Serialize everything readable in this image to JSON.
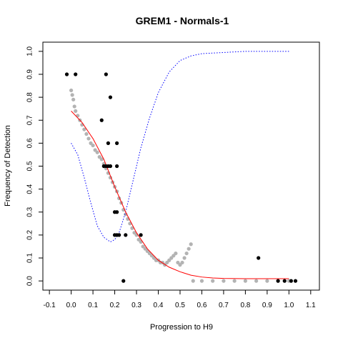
{
  "chart_data": {
    "type": "scatter",
    "title": "GREM1 - Normals-1",
    "xlabel": "Progression to H9",
    "ylabel": "Frequency of Detection",
    "xlim": [
      -0.13,
      1.14
    ],
    "ylim": [
      -0.04,
      1.04
    ],
    "x_ticks": [
      -0.1,
      0.0,
      0.1,
      0.2,
      0.3,
      0.4,
      0.5,
      0.6,
      0.7,
      0.8,
      0.9,
      1.0,
      1.1
    ],
    "x_tick_labels": [
      "-0.1",
      "0.0",
      "0.1",
      "0.2",
      "0.3",
      "0.4",
      "0.5",
      "0.6",
      "0.7",
      "0.8",
      "0.9",
      "1.0",
      "1.1"
    ],
    "y_ticks": [
      0.0,
      0.1,
      0.2,
      0.3,
      0.4,
      0.5,
      0.6,
      0.7,
      0.8,
      0.9,
      1.0
    ],
    "y_tick_labels": [
      "0.0",
      "0.1",
      "0.2",
      "0.3",
      "0.4",
      "0.5",
      "0.6",
      "0.7",
      "0.8",
      "0.9",
      "1.0"
    ],
    "legend": "none",
    "grid": false,
    "colors": {
      "observed": "#000000",
      "fitted": "#b3b3b3",
      "smooth": "#ff0000",
      "reference": "#0000ff"
    },
    "series": [
      {
        "style": "points",
        "color": "#000000",
        "x": [
          -0.02,
          0.02,
          0.16,
          0.18,
          0.14,
          0.17,
          0.21,
          0.15,
          0.16,
          0.17,
          0.18,
          0.21,
          0.2,
          0.21,
          0.2,
          0.21,
          0.22,
          0.25,
          0.32,
          0.24,
          0.86,
          0.95,
          0.98,
          1.01,
          1.03
        ],
        "y": [
          0.9,
          0.9,
          0.9,
          0.8,
          0.7,
          0.6,
          0.6,
          0.5,
          0.5,
          0.5,
          0.5,
          0.5,
          0.3,
          0.3,
          0.2,
          0.2,
          0.2,
          0.2,
          0.2,
          0.0,
          0.1,
          0.0,
          0.0,
          0.0,
          0.0
        ]
      },
      {
        "style": "points",
        "color": "#b3b3b3",
        "x": [
          0.0,
          0.005,
          0.01,
          0.015,
          0.02,
          0.03,
          0.04,
          0.05,
          0.06,
          0.07,
          0.08,
          0.09,
          0.1,
          0.11,
          0.12,
          0.13,
          0.14,
          0.15,
          0.16,
          0.17,
          0.18,
          0.19,
          0.2,
          0.21,
          0.22,
          0.23,
          0.24,
          0.25,
          0.26,
          0.27,
          0.28,
          0.29,
          0.3,
          0.31,
          0.32,
          0.33,
          0.34,
          0.35,
          0.36,
          0.37,
          0.38,
          0.39,
          0.4,
          0.41,
          0.42,
          0.43,
          0.44,
          0.45,
          0.46,
          0.47,
          0.48,
          0.49,
          0.5,
          0.51,
          0.52,
          0.53,
          0.54,
          0.55,
          0.56,
          0.6,
          0.65,
          0.7,
          0.75,
          0.8,
          0.85,
          0.9,
          0.95,
          1.0
        ],
        "y": [
          0.83,
          0.81,
          0.79,
          0.76,
          0.74,
          0.72,
          0.7,
          0.68,
          0.66,
          0.64,
          0.62,
          0.6,
          0.59,
          0.57,
          0.56,
          0.54,
          0.53,
          0.51,
          0.49,
          0.47,
          0.45,
          0.43,
          0.41,
          0.39,
          0.36,
          0.34,
          0.31,
          0.29,
          0.27,
          0.25,
          0.23,
          0.21,
          0.2,
          0.18,
          0.17,
          0.15,
          0.14,
          0.13,
          0.12,
          0.11,
          0.1,
          0.09,
          0.09,
          0.08,
          0.08,
          0.07,
          0.08,
          0.09,
          0.1,
          0.11,
          0.12,
          0.08,
          0.07,
          0.08,
          0.1,
          0.12,
          0.14,
          0.16,
          0.0,
          0.0,
          0.0,
          0.0,
          0.0,
          0.0,
          0.0,
          0.0,
          0.0,
          0.0
        ]
      },
      {
        "style": "line",
        "color": "#ff0000",
        "x": [
          0.0,
          0.05,
          0.1,
          0.15,
          0.2,
          0.25,
          0.3,
          0.35,
          0.4,
          0.45,
          0.5,
          0.55,
          0.6,
          0.65,
          0.7,
          0.8,
          0.9,
          1.0
        ],
        "y": [
          0.74,
          0.69,
          0.62,
          0.53,
          0.41,
          0.3,
          0.21,
          0.14,
          0.09,
          0.06,
          0.04,
          0.025,
          0.017,
          0.013,
          0.011,
          0.01,
          0.01,
          0.01
        ]
      },
      {
        "style": "dotted-line",
        "color": "#0000ff",
        "x": [
          0.0,
          0.03,
          0.06,
          0.09,
          0.12,
          0.15,
          0.18,
          0.2,
          0.22,
          0.25,
          0.28,
          0.32,
          0.36,
          0.4,
          0.45,
          0.5,
          0.55,
          0.6,
          0.7,
          0.8,
          0.9,
          1.0
        ],
        "y": [
          0.6,
          0.55,
          0.45,
          0.34,
          0.24,
          0.19,
          0.17,
          0.18,
          0.21,
          0.3,
          0.42,
          0.58,
          0.71,
          0.82,
          0.91,
          0.96,
          0.98,
          0.99,
          0.995,
          1.0,
          1.0,
          1.0
        ]
      }
    ]
  }
}
